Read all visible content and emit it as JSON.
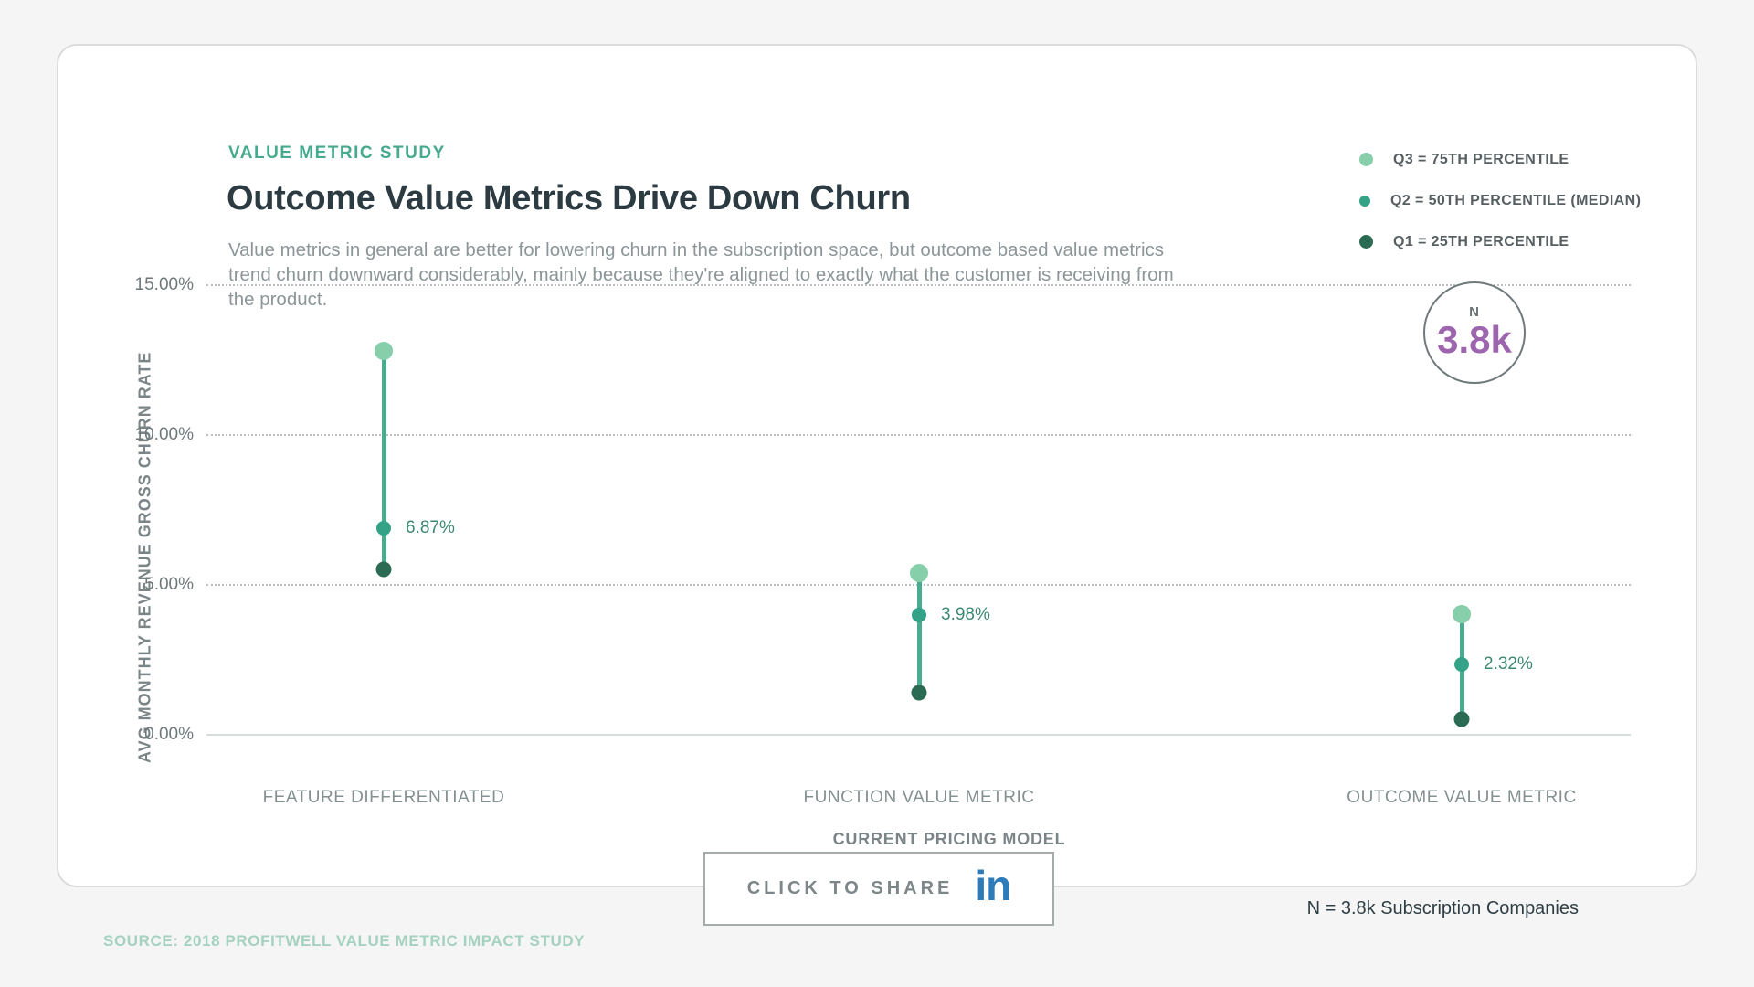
{
  "header": {
    "eyebrow": "VALUE METRIC STUDY",
    "title": "Outcome Value Metrics Drive Down Churn",
    "subtitle": "Value metrics in general are better for lowering churn in the subscription space, but outcome based value metrics trend churn downward considerably, mainly because they're aligned to exactly what the customer is receiving from the product."
  },
  "legend": {
    "items": [
      {
        "marker": "dot-light",
        "label": "Q3 = 75TH PERCENTILE"
      },
      {
        "marker": "ring",
        "label": "Q2 = 50TH PERCENTILE (MEDIAN)"
      },
      {
        "marker": "dot-dark",
        "label": "Q1 = 25TH PERCENTILE"
      }
    ]
  },
  "sample_badge": {
    "label": "N",
    "value": "3.8k"
  },
  "chart_data": {
    "type": "scatter",
    "subtype": "dot-range-plot",
    "title": "Outcome Value Metrics Drive Down Churn",
    "categories": [
      "FEATURE DIFFERENTIATED",
      "FUNCTION VALUE METRIC",
      "OUTCOME VALUE METRIC"
    ],
    "xlabel": "CURRENT PRICING MODEL",
    "ylabel": "AVG MONTHLY REVENUE GROSS CHURN RATE",
    "ylim": [
      0,
      15
    ],
    "yticks": [
      {
        "label": "15.00%",
        "value": 15
      },
      {
        "label": "10.00%",
        "value": 10
      },
      {
        "label": "5.00%",
        "value": 5
      },
      {
        "label": "0.00%",
        "value": 0
      }
    ],
    "grid": true,
    "legend_position": "top-right",
    "series": [
      {
        "name": "Q3 = 75TH PERCENTILE",
        "values": [
          12.8,
          5.4,
          4.0
        ]
      },
      {
        "name": "Q2 = 50TH PERCENTILE (MEDIAN)",
        "values": [
          6.87,
          3.98,
          2.32
        ]
      },
      {
        "name": "Q1 = 25TH PERCENTILE",
        "values": [
          5.5,
          1.4,
          0.5
        ]
      }
    ],
    "median_labels": [
      "6.87%",
      "3.98%",
      "2.32%"
    ]
  },
  "footer": {
    "share_label": "CLICK TO SHARE",
    "linkedin_icon_text": "in",
    "sample_note": "N = 3.8k Subscription Companies",
    "source": "SOURCE: 2018 PROFITWELL VALUE METRIC IMPACT STUDY"
  },
  "colors": {
    "accent_teal": "#46aa8e",
    "q3_light_green": "#86cfaa",
    "q2_ring_teal": "#33a287",
    "q1_dark_green": "#2c6b53",
    "range_line": "#4aab8e",
    "sample_purple": "#9c65ae",
    "linkedin_blue": "#2d7bb8",
    "title_dark": "#2c3b42",
    "source_green": "#a5d1c0"
  }
}
